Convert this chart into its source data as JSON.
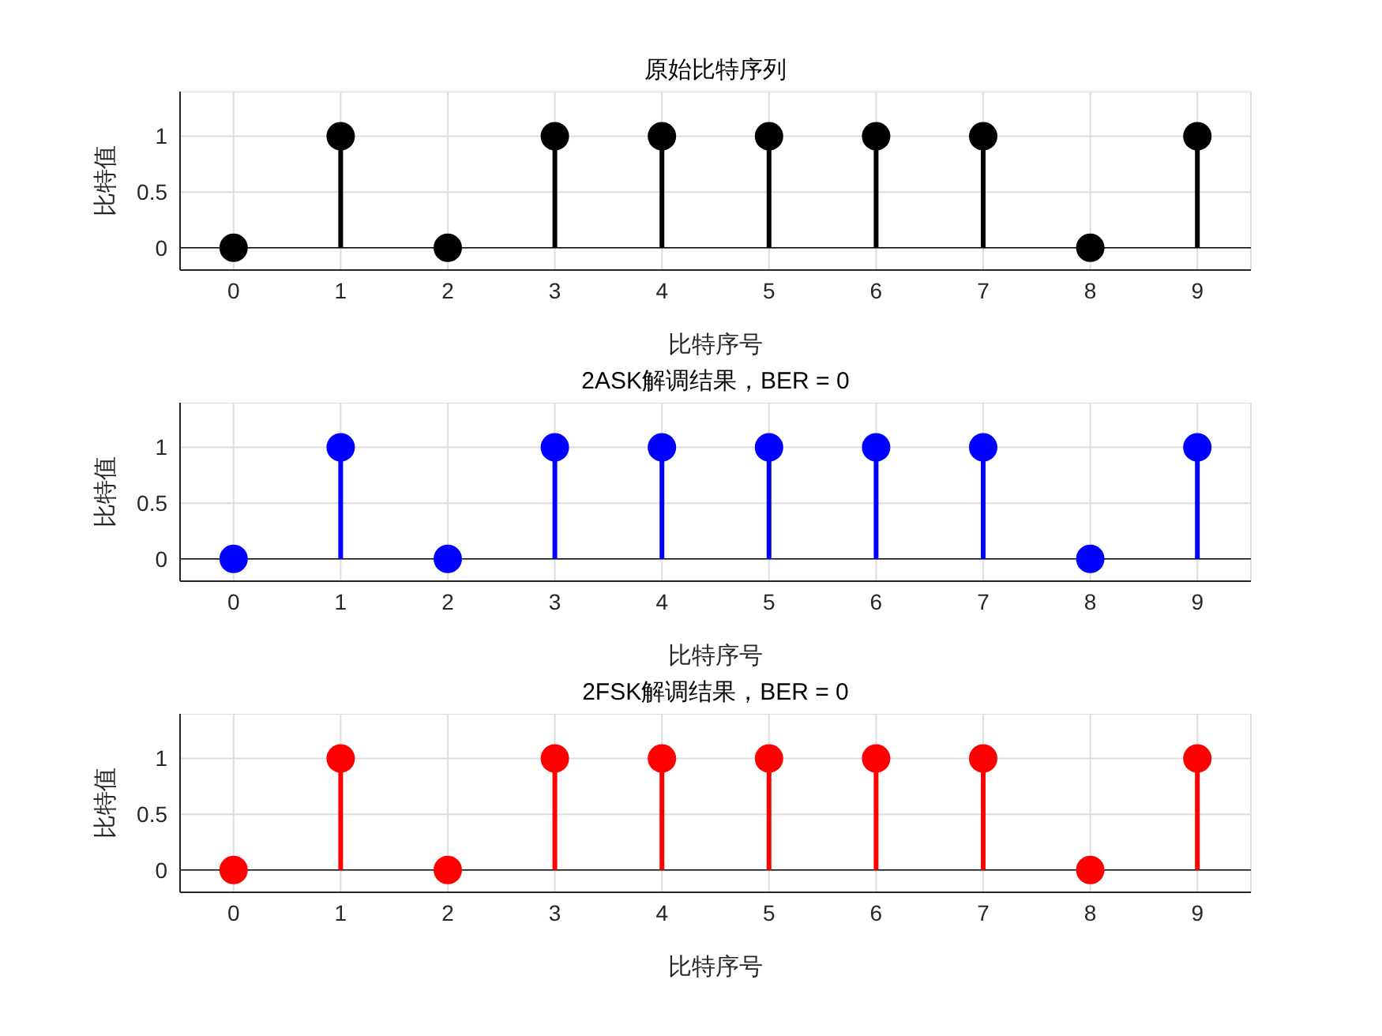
{
  "chart_data": [
    {
      "type": "lollipop",
      "title": "原始比特序列",
      "xlabel": "比特序号",
      "ylabel": "比特值",
      "x": [
        0,
        1,
        2,
        3,
        4,
        5,
        6,
        7,
        8,
        9
      ],
      "values": [
        0,
        1,
        0,
        1,
        1,
        1,
        1,
        1,
        0,
        1
      ],
      "color": "#000000",
      "xlim": [
        -0.5,
        9.5
      ],
      "xticks": [
        0,
        1,
        2,
        3,
        4,
        5,
        6,
        7,
        8,
        9
      ],
      "ylim": [
        -0.2,
        1.4
      ],
      "yticks": [
        0,
        0.5,
        1
      ],
      "grid": true,
      "marker": "circle",
      "ref_lines": [
        {
          "axis": "y",
          "value": 0,
          "color": "#000000"
        }
      ]
    },
    {
      "type": "lollipop",
      "title": "2ASK解调结果，BER = 0",
      "xlabel": "比特序号",
      "ylabel": "比特值",
      "x": [
        0,
        1,
        2,
        3,
        4,
        5,
        6,
        7,
        8,
        9
      ],
      "values": [
        0,
        1,
        0,
        1,
        1,
        1,
        1,
        1,
        0,
        1
      ],
      "color": "#0000ff",
      "xlim": [
        -0.5,
        9.5
      ],
      "xticks": [
        0,
        1,
        2,
        3,
        4,
        5,
        6,
        7,
        8,
        9
      ],
      "ylim": [
        -0.2,
        1.4
      ],
      "yticks": [
        0,
        0.5,
        1
      ],
      "grid": true,
      "marker": "circle",
      "ref_lines": [
        {
          "axis": "y",
          "value": 0,
          "color": "#000000"
        }
      ]
    },
    {
      "type": "lollipop",
      "title": "2FSK解调结果，BER = 0",
      "xlabel": "比特序号",
      "ylabel": "比特值",
      "x": [
        0,
        1,
        2,
        3,
        4,
        5,
        6,
        7,
        8,
        9
      ],
      "values": [
        0,
        1,
        0,
        1,
        1,
        1,
        1,
        1,
        0,
        1
      ],
      "color": "#ff0000",
      "xlim": [
        -0.5,
        9.5
      ],
      "xticks": [
        0,
        1,
        2,
        3,
        4,
        5,
        6,
        7,
        8,
        9
      ],
      "ylim": [
        -0.2,
        1.4
      ],
      "yticks": [
        0,
        0.5,
        1
      ],
      "grid": true,
      "marker": "circle",
      "ref_lines": [
        {
          "axis": "y",
          "value": 0,
          "color": "#000000"
        }
      ]
    }
  ]
}
